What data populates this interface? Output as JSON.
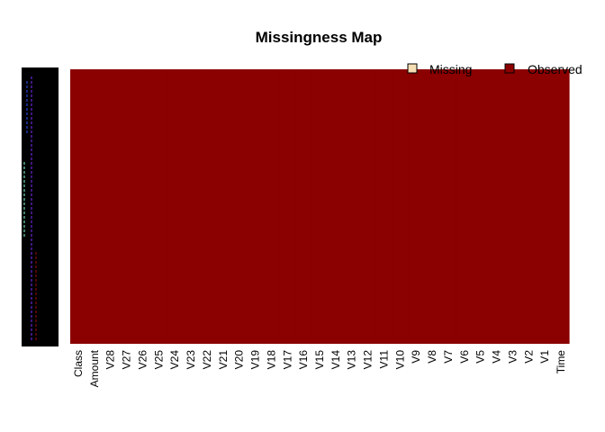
{
  "chart_data": {
    "type": "heatmap",
    "title": "Missingness Map",
    "xlabel": "",
    "ylabel": "",
    "columns": [
      "Class",
      "Amount",
      "V28",
      "V27",
      "V26",
      "V25",
      "V24",
      "V23",
      "V22",
      "V21",
      "V20",
      "V19",
      "V18",
      "V17",
      "V16",
      "V15",
      "V14",
      "V13",
      "V12",
      "V11",
      "V10",
      "V9",
      "V8",
      "V7",
      "V6",
      "V5",
      "V4",
      "V3",
      "V2",
      "V1",
      "Time"
    ],
    "percent_missing": [
      0,
      0,
      0,
      0,
      0,
      0,
      0,
      0,
      0,
      0,
      0,
      0,
      0,
      0,
      0,
      0,
      0,
      0,
      0,
      0,
      0,
      0,
      0,
      0,
      0,
      0,
      0,
      0,
      0,
      0,
      0
    ],
    "legend": {
      "placement": "top-right",
      "entries": [
        {
          "label": "Missing",
          "color": "#f5deb3"
        },
        {
          "label": "Observed",
          "color": "#8b0000"
        }
      ]
    },
    "grid": false
  }
}
